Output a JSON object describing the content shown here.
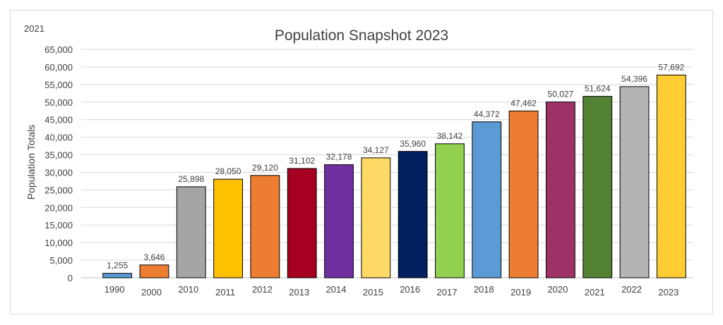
{
  "corner_label": "2021",
  "chart_data": {
    "type": "bar",
    "title": "Population Snapshot 2023",
    "xlabel": "",
    "ylabel": "Population Totals",
    "ylim": [
      0,
      65000
    ],
    "y_ticks": [
      "0",
      "5,000",
      "10,000",
      "15,000",
      "20,000",
      "25,000",
      "30,000",
      "35,000",
      "40,000",
      "45,000",
      "50,000",
      "55,000",
      "60,000",
      "65,000"
    ],
    "grid": true,
    "categories": [
      "1990",
      "2000",
      "2010",
      "2011",
      "2012",
      "2013",
      "2014",
      "2015",
      "2016",
      "2017",
      "2018",
      "2019",
      "2020",
      "2021",
      "2022",
      "2023"
    ],
    "values": [
      1255,
      3646,
      25898,
      28050,
      29120,
      31102,
      32178,
      34127,
      35960,
      38142,
      44372,
      47462,
      50027,
      51624,
      54396,
      57692
    ],
    "data_labels": [
      "1,255",
      "3,646",
      "25,898",
      "28,050",
      "29,120",
      "31,102",
      "32,178",
      "34,127",
      "35,960",
      "38,142",
      "44,372",
      "47,462",
      "50,027",
      "51,624",
      "54,396",
      "57,692"
    ],
    "colors": [
      "#5b9bd5",
      "#ed7d31",
      "#a5a5a5",
      "#ffc000",
      "#ed7d31",
      "#a50021",
      "#7030a0",
      "#ffd966",
      "#002060",
      "#92d050",
      "#5b9bd5",
      "#ed7d31",
      "#9e3166",
      "#548235",
      "#b4b4b4",
      "#ffcc33"
    ]
  }
}
